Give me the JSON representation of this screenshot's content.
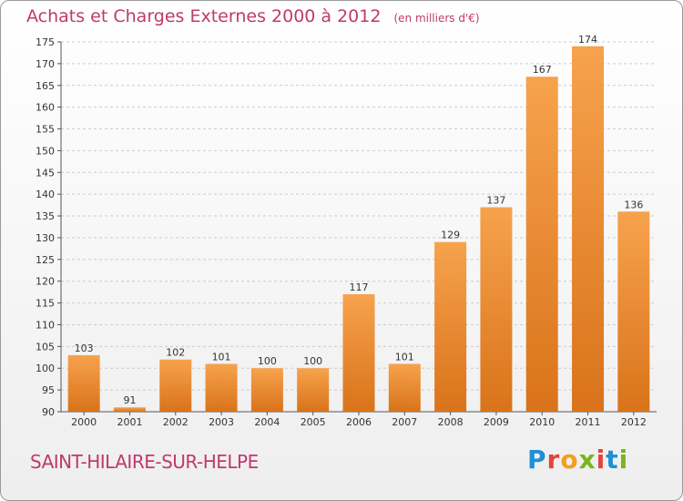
{
  "header": {
    "title": "Achats et Charges Externes 2000 à 2012",
    "subtitle": "(en milliers d'€)"
  },
  "footer": {
    "commune": "SAINT-HILAIRE-SUR-HELPE",
    "brand": "Proxiti",
    "brand_colors": [
      "#1f8fd6",
      "#e5443a",
      "#f29e1e",
      "#7ab51d",
      "#e5443a",
      "#1f8fd6",
      "#7ab51d"
    ]
  },
  "colors": {
    "title": "#c0396e",
    "bar_light": "#f7a24d",
    "bar_dark": "#d9731a",
    "grid": "#cccccc",
    "axis": "#555555"
  },
  "chart_data": {
    "type": "bar",
    "title": "Achats et Charges Externes 2000 à 2012",
    "subtitle": "(en milliers d'€)",
    "categories": [
      "2000",
      "2001",
      "2002",
      "2003",
      "2004",
      "2005",
      "2006",
      "2007",
      "2008",
      "2009",
      "2010",
      "2011",
      "2012"
    ],
    "values": [
      103,
      91,
      102,
      101,
      100,
      100,
      117,
      101,
      129,
      137,
      167,
      174,
      136
    ],
    "ylim": [
      90,
      175
    ],
    "yticks": [
      90,
      95,
      100,
      105,
      110,
      115,
      120,
      125,
      130,
      135,
      140,
      145,
      150,
      155,
      160,
      165,
      170,
      175
    ],
    "grid": true,
    "xlabel": "",
    "ylabel": ""
  }
}
